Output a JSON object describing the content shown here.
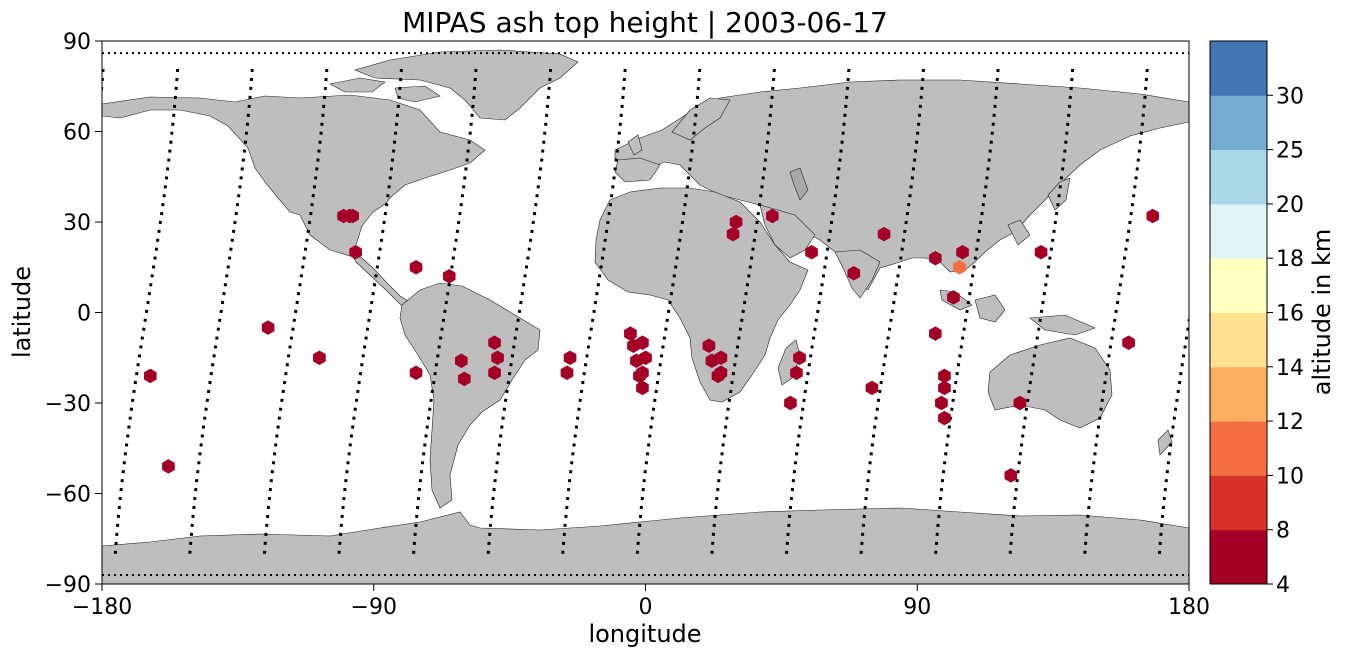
{
  "chart_data": {
    "type": "scatter",
    "title": "MIPAS ash top height | 2003-06-17",
    "xlabel": "longitude",
    "ylabel": "latitude",
    "xlim": [
      -180,
      180
    ],
    "ylim": [
      -90,
      90
    ],
    "xticks": [
      -180,
      -90,
      0,
      90,
      180
    ],
    "yticks": [
      -90,
      -60,
      -30,
      0,
      30,
      60,
      90
    ],
    "xtick_labels": [
      "−180",
      "−90",
      "0",
      "90",
      "180"
    ],
    "ytick_labels": [
      "−90",
      "−60",
      "−30",
      "0",
      "30",
      "60",
      "90"
    ],
    "grid": false,
    "map_background": "world map, grey land (#bebebe) with dark outlines, white ocean",
    "colorbar": {
      "label": "altitude in km",
      "bounds": [
        4,
        8,
        10,
        12,
        14,
        16,
        18,
        20,
        25,
        30
      ],
      "tick_labels": [
        "4",
        "8",
        "10",
        "12",
        "14",
        "16",
        "18",
        "20",
        "25",
        "30"
      ],
      "colors": [
        "#a50026",
        "#d73027",
        "#f46d43",
        "#fdae61",
        "#fee090",
        "#ffffbf",
        "#e0f3f8",
        "#abd9e9",
        "#74add1",
        "#4575b4"
      ]
    },
    "tracks_description": "MIPAS orbit measurement locations shown as black dotted lines",
    "points": [
      {
        "lon": -98,
        "lat": 32,
        "alt": 6
      },
      {
        "lon": -97,
        "lat": 32,
        "alt": 6
      },
      {
        "lon": -164,
        "lat": -21,
        "alt": 6
      },
      {
        "lon": -158,
        "lat": -51,
        "alt": 6
      },
      {
        "lon": -125,
        "lat": -5,
        "alt": 6
      },
      {
        "lon": -100,
        "lat": 32,
        "alt": 6
      },
      {
        "lon": -96,
        "lat": 20,
        "alt": 6
      },
      {
        "lon": -108,
        "lat": -15,
        "alt": 6
      },
      {
        "lon": -76,
        "lat": 15,
        "alt": 6
      },
      {
        "lon": -65,
        "lat": 12,
        "alt": 6
      },
      {
        "lon": -76,
        "lat": -20,
        "alt": 6
      },
      {
        "lon": -61,
        "lat": -16,
        "alt": 6
      },
      {
        "lon": -60,
        "lat": -22,
        "alt": 6
      },
      {
        "lon": -50,
        "lat": -10,
        "alt": 6
      },
      {
        "lon": -49,
        "lat": -15,
        "alt": 6
      },
      {
        "lon": -50,
        "lat": -20,
        "alt": 6
      },
      {
        "lon": -25,
        "lat": -15,
        "alt": 6
      },
      {
        "lon": -26,
        "lat": -20,
        "alt": 6
      },
      {
        "lon": -5,
        "lat": -7,
        "alt": 6
      },
      {
        "lon": -4,
        "lat": -11,
        "alt": 6
      },
      {
        "lon": -3,
        "lat": -16,
        "alt": 6
      },
      {
        "lon": -1,
        "lat": -10,
        "alt": 6
      },
      {
        "lon": 0,
        "lat": -15,
        "alt": 6
      },
      {
        "lon": -2,
        "lat": -21,
        "alt": 6
      },
      {
        "lon": -1,
        "lat": -20,
        "alt": 6
      },
      {
        "lon": -1,
        "lat": -25,
        "alt": 6
      },
      {
        "lon": 21,
        "lat": -11,
        "alt": 6
      },
      {
        "lon": 22,
        "lat": -16,
        "alt": 6
      },
      {
        "lon": 25,
        "lat": -15,
        "alt": 6
      },
      {
        "lon": 24,
        "lat": -21,
        "alt": 6
      },
      {
        "lon": 25,
        "lat": -20,
        "alt": 6
      },
      {
        "lon": 29,
        "lat": 26,
        "alt": 6
      },
      {
        "lon": 30,
        "lat": 30,
        "alt": 6
      },
      {
        "lon": 42,
        "lat": 32,
        "alt": 6
      },
      {
        "lon": 55,
        "lat": 20,
        "alt": 6
      },
      {
        "lon": 51,
        "lat": -15,
        "alt": 6
      },
      {
        "lon": 50,
        "lat": -20,
        "alt": 6
      },
      {
        "lon": 48,
        "lat": -30,
        "alt": 6
      },
      {
        "lon": 69,
        "lat": 13,
        "alt": 6
      },
      {
        "lon": 79,
        "lat": 26,
        "alt": 6
      },
      {
        "lon": 75,
        "lat": -25,
        "alt": 6
      },
      {
        "lon": 96,
        "lat": 18,
        "alt": 6
      },
      {
        "lon": 96,
        "lat": -7,
        "alt": 6
      },
      {
        "lon": 102,
        "lat": 5,
        "alt": 6
      },
      {
        "lon": 105,
        "lat": 20,
        "alt": 6
      },
      {
        "lon": 104,
        "lat": 15,
        "alt": 11
      },
      {
        "lon": 99,
        "lat": -21,
        "alt": 6
      },
      {
        "lon": 99,
        "lat": -25,
        "alt": 6
      },
      {
        "lon": 98,
        "lat": -30,
        "alt": 6
      },
      {
        "lon": 99,
        "lat": -35,
        "alt": 6
      },
      {
        "lon": 131,
        "lat": 20,
        "alt": 6
      },
      {
        "lon": 124,
        "lat": -30,
        "alt": 6
      },
      {
        "lon": 121,
        "lat": -54,
        "alt": 6
      },
      {
        "lon": 160,
        "lat": -10,
        "alt": 6
      },
      {
        "lon": 168,
        "lat": 32,
        "alt": 6
      }
    ]
  }
}
